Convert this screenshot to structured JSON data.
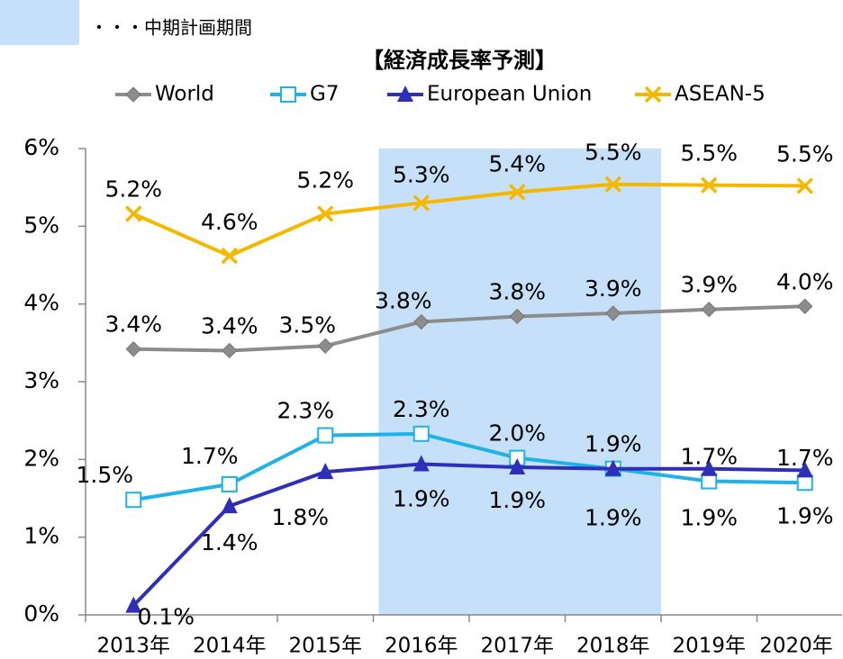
{
  "chart_data": {
    "type": "line",
    "title": "【経済成長率予測】",
    "highlight_label": "・・・中期計画期間",
    "highlight_range": [
      "2016年",
      "2018年"
    ],
    "highlight_color": "#c5e0f8",
    "categories": [
      "2013年",
      "2014年",
      "2015年",
      "2016年",
      "2017年",
      "2018年",
      "2019年",
      "2020年"
    ],
    "ylim": [
      0,
      6
    ],
    "yticks": [
      {
        "value": 0,
        "label": "0%"
      },
      {
        "value": 1,
        "label": "1%"
      },
      {
        "value": 2,
        "label": "2%"
      },
      {
        "value": 3,
        "label": "3%"
      },
      {
        "value": 4,
        "label": "4%"
      },
      {
        "value": 5,
        "label": "5%"
      },
      {
        "value": 6,
        "label": "6%"
      }
    ],
    "grid": false,
    "legend": "top",
    "series": [
      {
        "name": "World",
        "color": "#8c8c8c",
        "marker": "diamond",
        "values": [
          3.42,
          3.4,
          3.46,
          3.77,
          3.84,
          3.88,
          3.93,
          3.97
        ],
        "value_labels": [
          "3.4%",
          "3.4%",
          "3.5%",
          "3.8%",
          "3.8%",
          "3.9%",
          "3.9%",
          "4.0%"
        ]
      },
      {
        "name": "G7",
        "color": "#1fb2e6",
        "marker": "square",
        "values": [
          1.48,
          1.68,
          2.31,
          2.33,
          2.02,
          1.88,
          1.72,
          1.7
        ],
        "value_labels": [
          "1.5%",
          "1.7%",
          "2.3%",
          "2.3%",
          "2.0%",
          "1.9%",
          "1.7%",
          "1.7%"
        ]
      },
      {
        "name": "European Union",
        "color": "#2e2eb8",
        "marker": "triangle",
        "values": [
          0.12,
          1.4,
          1.84,
          1.94,
          1.9,
          1.88,
          1.88,
          1.86
        ],
        "value_labels": [
          "0.1%",
          "1.4%",
          "1.8%",
          "1.9%",
          "1.9%",
          "1.9%",
          "1.9%",
          "1.9%"
        ]
      },
      {
        "name": "ASEAN-5",
        "color": "#f5b800",
        "marker": "x",
        "values": [
          5.16,
          4.62,
          5.16,
          5.3,
          5.44,
          5.54,
          5.53,
          5.52
        ],
        "value_labels": [
          "5.2%",
          "4.6%",
          "5.2%",
          "5.3%",
          "5.4%",
          "5.5%",
          "5.5%",
          "5.5%"
        ]
      }
    ]
  }
}
